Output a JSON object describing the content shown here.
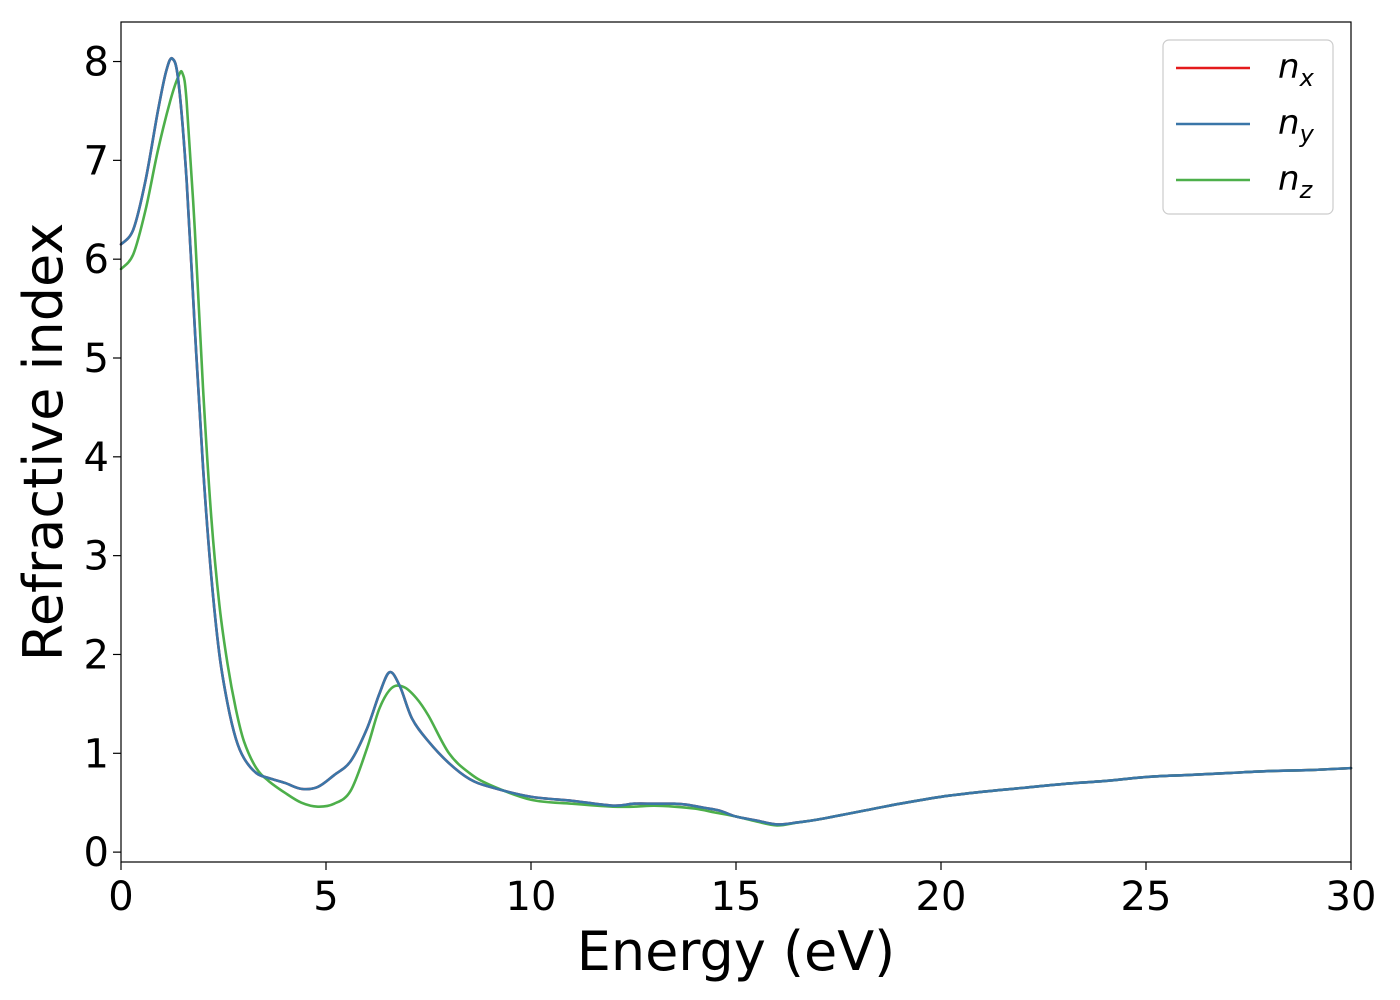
{
  "chart_data": {
    "type": "line",
    "xlabel": "Energy (eV)",
    "ylabel": "Refractive index",
    "xlim": [
      0,
      30
    ],
    "ylim": [
      -0.1,
      8.4
    ],
    "xticks": [
      0,
      5,
      10,
      15,
      20,
      25,
      30
    ],
    "yticks": [
      0,
      1,
      2,
      3,
      4,
      5,
      6,
      7,
      8
    ],
    "grid": false,
    "legend_position": "top-right",
    "series": [
      {
        "name": "n_x",
        "label_base": "n",
        "label_sub": "x",
        "color": "#e41a1c",
        "x": [
          0,
          0.3,
          0.6,
          0.9,
          1.1,
          1.25,
          1.4,
          1.6,
          1.8,
          2.0,
          2.2,
          2.4,
          2.6,
          2.8,
          3.0,
          3.3,
          3.6,
          4.0,
          4.4,
          4.8,
          5.2,
          5.6,
          6.0,
          6.3,
          6.55,
          6.8,
          7.1,
          7.5,
          8.0,
          8.5,
          9.0,
          10.0,
          11.0,
          12.0,
          12.5,
          13.0,
          13.5,
          13.8,
          14.2,
          14.6,
          15.0,
          15.5,
          16.0,
          16.5,
          17.0,
          18.0,
          19.0,
          20.0,
          21.0,
          22.0,
          23.0,
          24.0,
          25.0,
          26.0,
          27.0,
          28.0,
          29.0,
          30.0
        ],
        "y": [
          6.15,
          6.3,
          6.8,
          7.5,
          7.9,
          8.03,
          7.8,
          6.8,
          5.3,
          3.9,
          2.8,
          2.0,
          1.5,
          1.15,
          0.95,
          0.8,
          0.75,
          0.7,
          0.64,
          0.66,
          0.78,
          0.92,
          1.25,
          1.6,
          1.82,
          1.68,
          1.35,
          1.12,
          0.9,
          0.74,
          0.66,
          0.56,
          0.52,
          0.47,
          0.49,
          0.49,
          0.49,
          0.48,
          0.45,
          0.42,
          0.36,
          0.32,
          0.28,
          0.3,
          0.33,
          0.41,
          0.49,
          0.56,
          0.61,
          0.65,
          0.69,
          0.72,
          0.76,
          0.78,
          0.8,
          0.82,
          0.83,
          0.85
        ]
      },
      {
        "name": "n_y",
        "label_base": "n",
        "label_sub": "y",
        "color": "#3a76a8",
        "x": [
          0,
          0.3,
          0.6,
          0.9,
          1.1,
          1.25,
          1.4,
          1.6,
          1.8,
          2.0,
          2.2,
          2.4,
          2.6,
          2.8,
          3.0,
          3.3,
          3.6,
          4.0,
          4.4,
          4.8,
          5.2,
          5.6,
          6.0,
          6.3,
          6.55,
          6.8,
          7.1,
          7.5,
          8.0,
          8.5,
          9.0,
          10.0,
          11.0,
          12.0,
          12.5,
          13.0,
          13.5,
          13.8,
          14.2,
          14.6,
          15.0,
          15.5,
          16.0,
          16.5,
          17.0,
          18.0,
          19.0,
          20.0,
          21.0,
          22.0,
          23.0,
          24.0,
          25.0,
          26.0,
          27.0,
          28.0,
          29.0,
          30.0
        ],
        "y": [
          6.15,
          6.3,
          6.8,
          7.5,
          7.9,
          8.03,
          7.8,
          6.8,
          5.3,
          3.9,
          2.8,
          2.0,
          1.5,
          1.15,
          0.95,
          0.8,
          0.75,
          0.7,
          0.64,
          0.66,
          0.78,
          0.92,
          1.25,
          1.6,
          1.82,
          1.68,
          1.35,
          1.12,
          0.9,
          0.74,
          0.66,
          0.56,
          0.52,
          0.47,
          0.49,
          0.49,
          0.49,
          0.48,
          0.45,
          0.42,
          0.36,
          0.32,
          0.28,
          0.3,
          0.33,
          0.41,
          0.49,
          0.56,
          0.61,
          0.65,
          0.69,
          0.72,
          0.76,
          0.78,
          0.8,
          0.82,
          0.83,
          0.85
        ]
      },
      {
        "name": "n_z",
        "label_base": "n",
        "label_sub": "z",
        "color": "#4daf4a",
        "x": [
          0,
          0.3,
          0.6,
          0.9,
          1.2,
          1.4,
          1.5,
          1.6,
          1.8,
          2.0,
          2.2,
          2.4,
          2.6,
          2.8,
          3.0,
          3.3,
          3.6,
          4.0,
          4.4,
          4.8,
          5.2,
          5.6,
          6.0,
          6.3,
          6.6,
          6.9,
          7.2,
          7.5,
          8.0,
          8.5,
          9.0,
          10.0,
          11.0,
          12.0,
          12.5,
          13.0,
          13.5,
          14.0,
          14.5,
          15.0,
          15.5,
          16.0,
          16.5,
          17.0,
          18.0,
          19.0,
          20.0,
          21.0,
          22.0,
          23.0,
          24.0,
          25.0,
          26.0,
          27.0,
          28.0,
          29.0,
          30.0
        ],
        "y": [
          5.9,
          6.05,
          6.5,
          7.1,
          7.6,
          7.85,
          7.88,
          7.6,
          6.3,
          4.7,
          3.4,
          2.5,
          1.9,
          1.45,
          1.12,
          0.85,
          0.72,
          0.6,
          0.5,
          0.46,
          0.49,
          0.62,
          1.05,
          1.45,
          1.66,
          1.67,
          1.56,
          1.38,
          1.0,
          0.8,
          0.68,
          0.53,
          0.49,
          0.46,
          0.46,
          0.47,
          0.46,
          0.44,
          0.4,
          0.36,
          0.31,
          0.27,
          0.3,
          0.33,
          0.41,
          0.49,
          0.56,
          0.61,
          0.65,
          0.69,
          0.72,
          0.76,
          0.78,
          0.8,
          0.82,
          0.83,
          0.85
        ]
      }
    ]
  }
}
